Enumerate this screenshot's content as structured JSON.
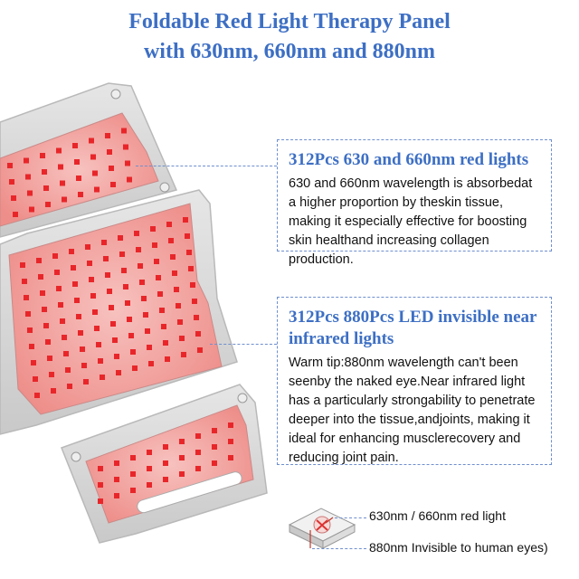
{
  "title": {
    "line1": "Foldable Red Light Therapy Panel",
    "line2": "with 630nm, 660nm and 880nm",
    "color": "#3d6fc4"
  },
  "callouts": [
    {
      "heading": "312Pcs 630 and 660nm red lights",
      "body": "630 and 660nm wavelength is absorbedat a higher proportion by theskin tissue, making it especially effective for boosting skin healthand increasing collagen production."
    },
    {
      "heading": "312Pcs 880Pcs LED invisible near infrared lights",
      "body": "Warm tip:880nm wavelength can't been seenby the naked eye.Near infrared light has a particularly strongability to penetrate deeper into the tissue,andjoints, making it ideal for enhancing musclerecovery and reducing joint pain."
    }
  ],
  "legend": {
    "red_label": "630nm / 660nm red light",
    "nir_label": "880nm Invisible to human eyes)"
  },
  "colors": {
    "led_red": "#e8262a",
    "panel_glow": "#f2a5a2",
    "frame_gray": "#d8d8d8",
    "accent_blue": "#3d6fc4"
  }
}
